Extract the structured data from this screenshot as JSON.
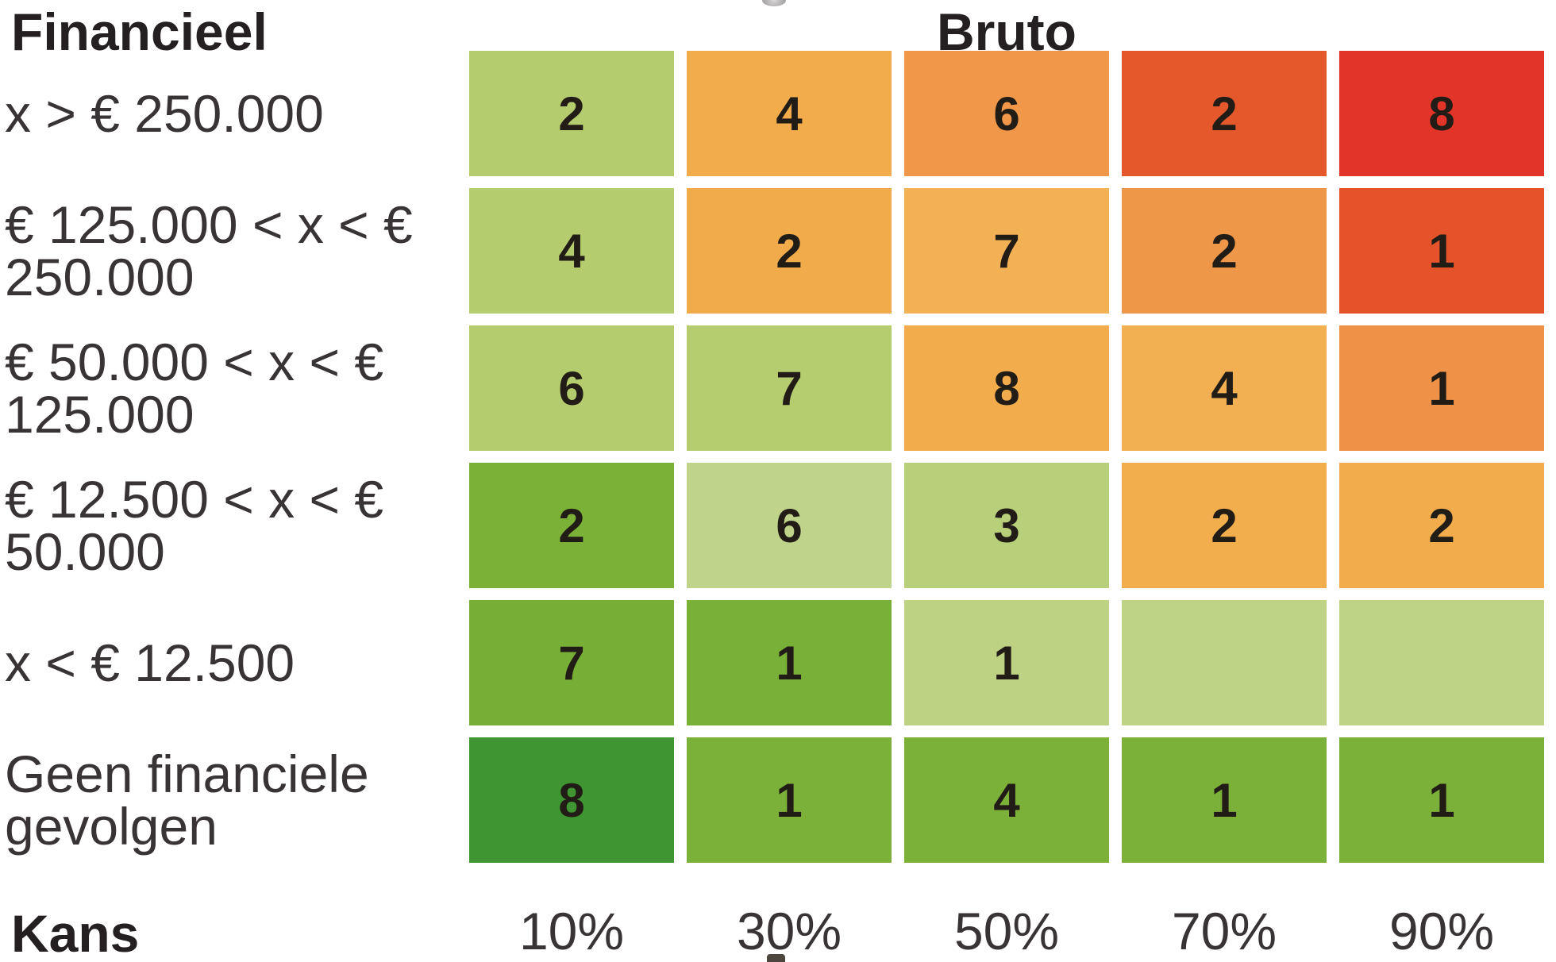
{
  "header": {
    "financieel": "Financieel",
    "bruto": "Bruto"
  },
  "footer": {
    "kans": "Kans"
  },
  "palette": {
    "dark_green": "#3e9532",
    "medium_green": "#7ab136",
    "light_green": "#b5cc6e",
    "pale_green": "#bdd282",
    "orange": "#f2ac4b",
    "mid_orange": "#f0974a",
    "orange_red": "#e5582b",
    "red": "#e23429",
    "text_dark": "#221c16",
    "label_gray": "#383334"
  },
  "chart_data": {
    "type": "heatmap",
    "title": "Bruto",
    "row_axis_label": "Financieel",
    "col_axis_label": "Kans",
    "legend_position": "none",
    "grid": "off",
    "columns": [
      "10%",
      "30%",
      "50%",
      "70%",
      "90%"
    ],
    "rows": [
      "x > € 250.000",
      "€ 125.000 < x < € 250.000",
      "€ 50.000 < x < € 125.000",
      "€ 12.500 < x < € 50.000",
      "x < € 12.500",
      "Geen financiele gevolgen"
    ],
    "row_label_lines": [
      [
        "x > € 250.000"
      ],
      [
        "€ 125.000 < x < €",
        "250.000"
      ],
      [
        "€ 50.000 < x < €",
        "125.000"
      ],
      [
        "€ 12.500 < x < €",
        "50.000"
      ],
      [
        "x < € 12.500"
      ],
      [
        "Geen financiele",
        "gevolgen"
      ]
    ],
    "values": [
      [
        2,
        4,
        6,
        2,
        8
      ],
      [
        4,
        2,
        7,
        2,
        1
      ],
      [
        6,
        7,
        8,
        4,
        1
      ],
      [
        2,
        6,
        3,
        2,
        2
      ],
      [
        7,
        1,
        1,
        null,
        null
      ],
      [
        8,
        1,
        4,
        1,
        1
      ]
    ],
    "cell_colors": [
      [
        "#b5cc6e",
        "#f2ac4b",
        "#f0974a",
        "#e5582b",
        "#e23429"
      ],
      [
        "#b5cc6e",
        "#f2ab4a",
        "#f3b156",
        "#ef9749",
        "#e5532b"
      ],
      [
        "#b5cc6e",
        "#b6cd6f",
        "#f2ac4b",
        "#f3b052",
        "#ef9247"
      ],
      [
        "#7ab136",
        "#c0d38a",
        "#b9d07b",
        "#f2ae4d",
        "#f2ac4b"
      ],
      [
        "#77ae35",
        "#79b037",
        "#bdd282",
        "#bed386",
        "#bed386"
      ],
      [
        "#3e9532",
        "#7cb139",
        "#7cb139",
        "#7cb139",
        "#7cb139"
      ]
    ]
  }
}
